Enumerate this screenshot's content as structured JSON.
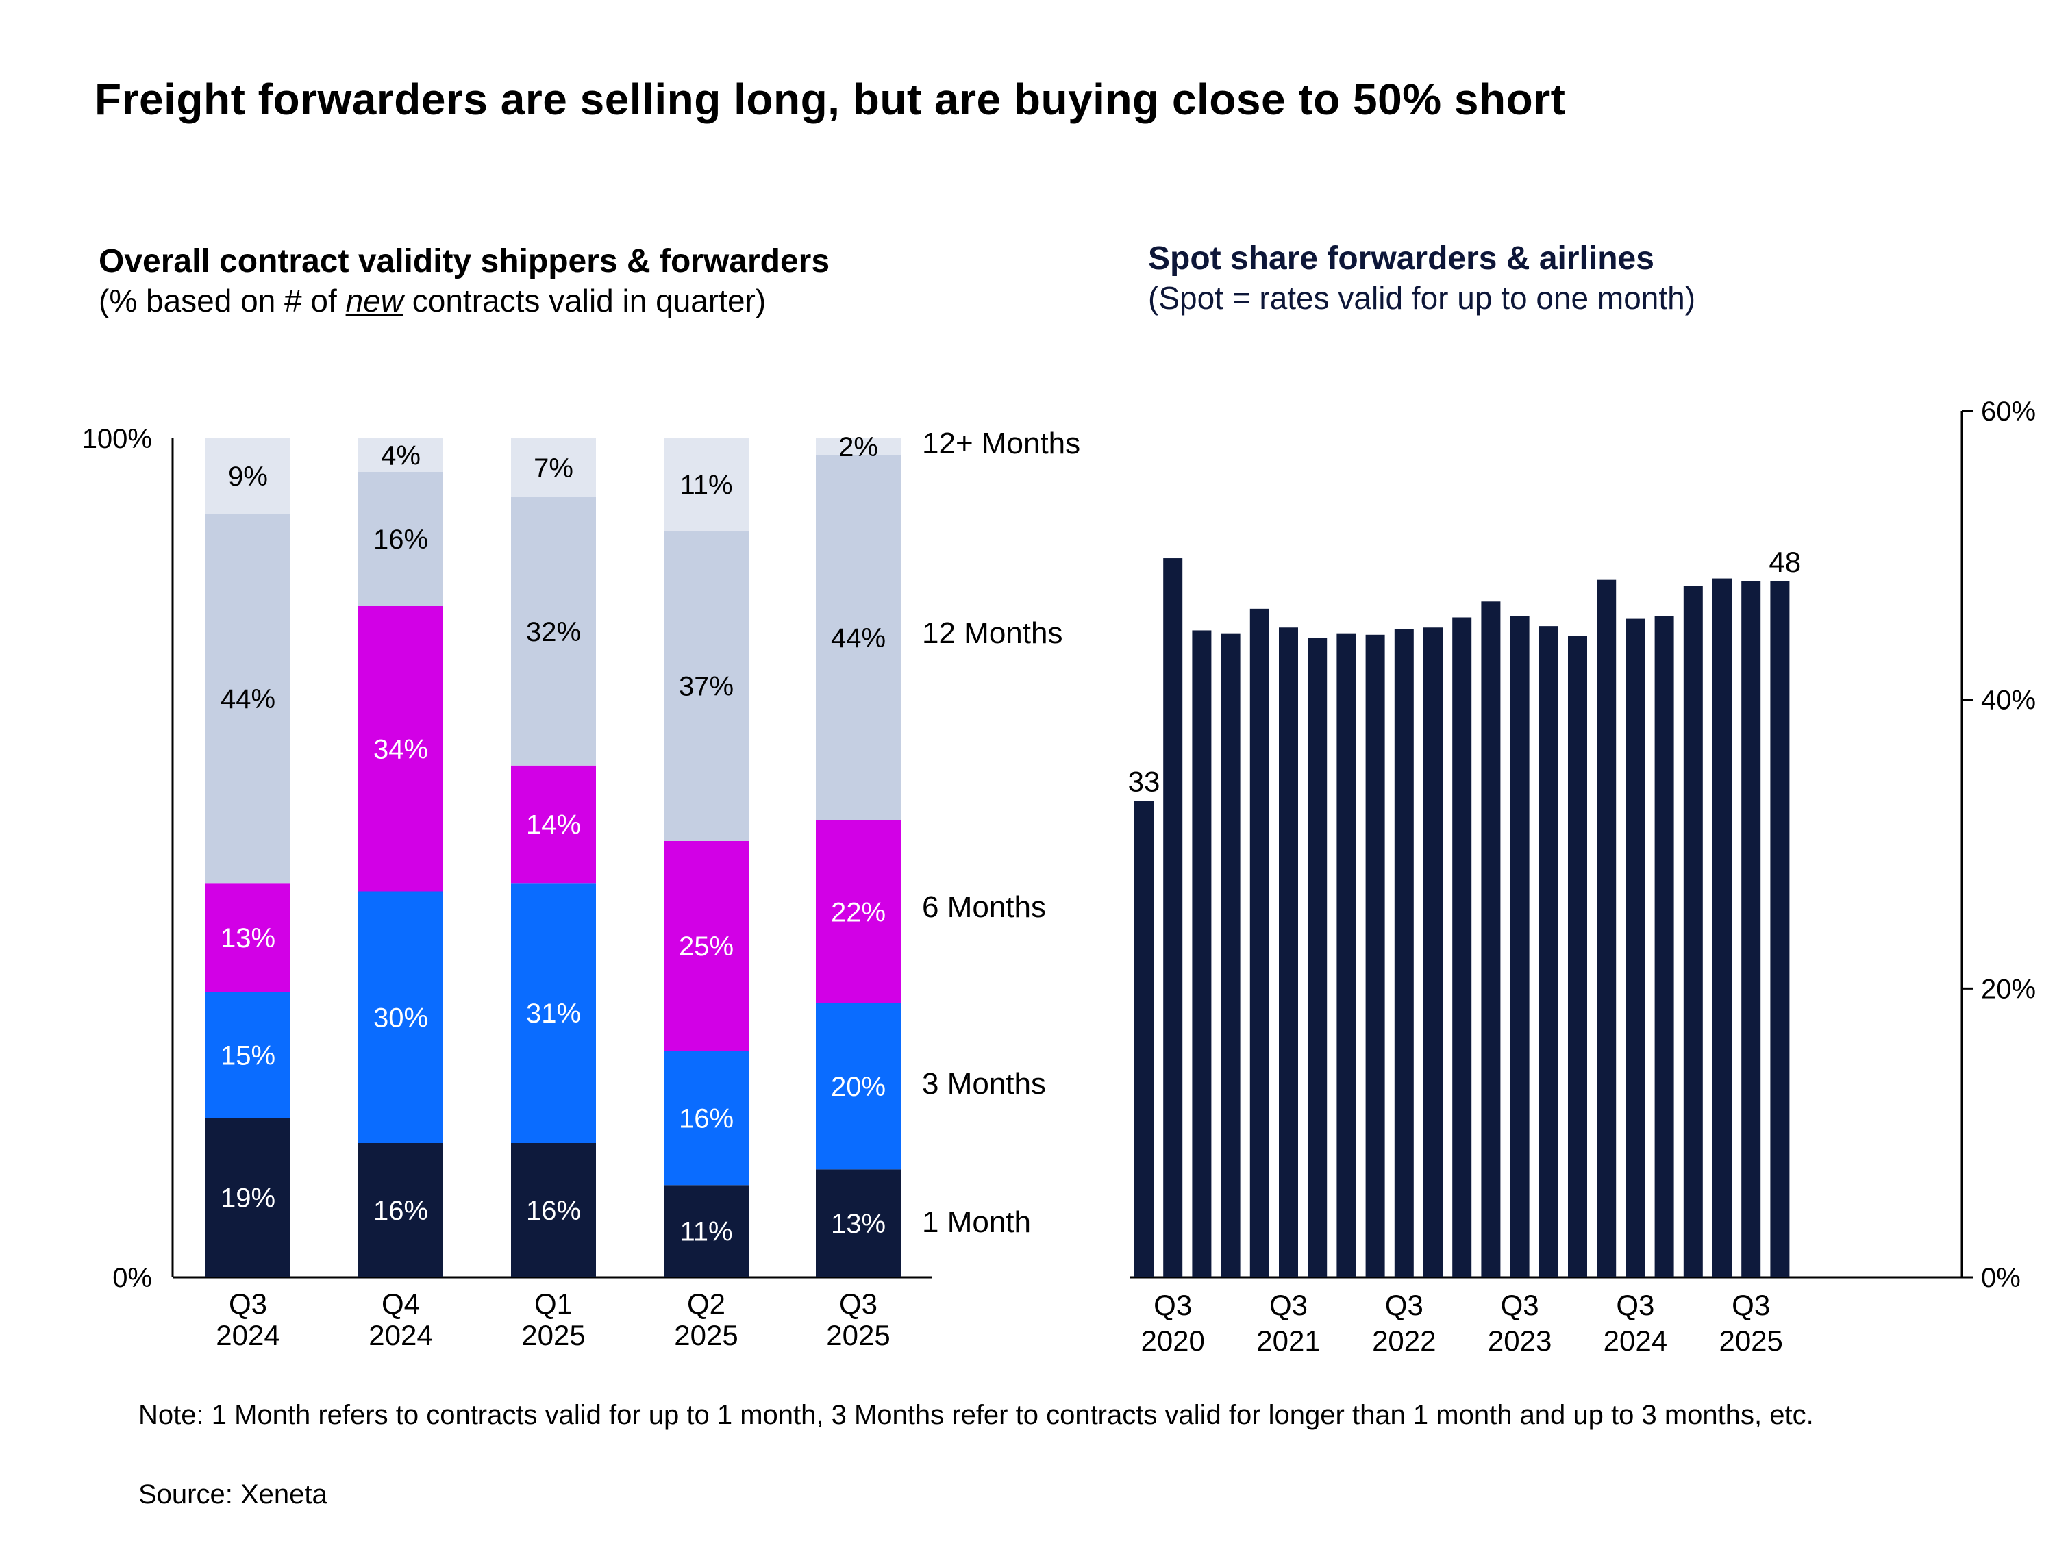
{
  "title": "Freight forwarders are selling long, but are buying close to 50% short",
  "left": {
    "title": "Overall contract validity shippers & forwarders",
    "subtitle_pre": "(% based on # of ",
    "subtitle_em": "new",
    "subtitle_post": " contracts valid in quarter)"
  },
  "right": {
    "title": "Spot share forwarders & airlines",
    "subtitle": "(Spot = rates valid for up to one month)"
  },
  "note": "Note: 1 Month refers to contracts valid for up to 1 month, 3 Months refer to contracts valid for longer than 1 month and up to 3 months, etc.",
  "source": "Source: Xeneta",
  "chart_data": [
    {
      "type": "bar",
      "stacked": true,
      "categories": [
        "Q3\n2024",
        "Q4\n2024",
        "Q1\n2025",
        "Q2\n2025",
        "Q3\n2025"
      ],
      "ylim": [
        0,
        100
      ],
      "yticks": [
        "0%",
        "100%"
      ],
      "series": [
        {
          "name": "1 Month",
          "color": "#0e1a3c",
          "text_color": "#ffffff",
          "values": [
            19,
            16,
            16,
            11,
            13
          ]
        },
        {
          "name": "3 Months",
          "color": "#0a6cff",
          "text_color": "#ffffff",
          "values": [
            15,
            30,
            31,
            16,
            20
          ]
        },
        {
          "name": "6 Months",
          "color": "#d200e6",
          "text_color": "#ffffff",
          "values": [
            13,
            34,
            14,
            25,
            22
          ]
        },
        {
          "name": "12 Months",
          "color": "#c5cfe2",
          "text_color": "#000000",
          "values": [
            44,
            16,
            32,
            37,
            44
          ]
        },
        {
          "name": "12+ Months",
          "color": "#e1e6f0",
          "text_color": "#000000",
          "values": [
            9,
            4,
            7,
            11,
            2
          ]
        }
      ],
      "grid": false,
      "legend": "right, inline labels"
    },
    {
      "type": "bar",
      "color": "#0e1a3c",
      "values": [
        33,
        49.8,
        44.8,
        44.6,
        46.3,
        45.0,
        44.3,
        44.6,
        44.5,
        44.9,
        45.0,
        45.7,
        46.8,
        45.8,
        45.1,
        44.4,
        48.3,
        45.6,
        45.8,
        47.9,
        48.4,
        48.2,
        48.2
      ],
      "data_labels": {
        "first": "33",
        "last": "48"
      },
      "x_ticks": [
        "Q3\n2020",
        "Q3\n2021",
        "Q3\n2022",
        "Q3\n2023",
        "Q3\n2024",
        "Q3\n2025"
      ],
      "ylim": [
        0,
        60
      ],
      "yticks": [
        "0%",
        "20%",
        "40%",
        "60%"
      ],
      "yaxis_side": "right",
      "grid": false
    }
  ]
}
